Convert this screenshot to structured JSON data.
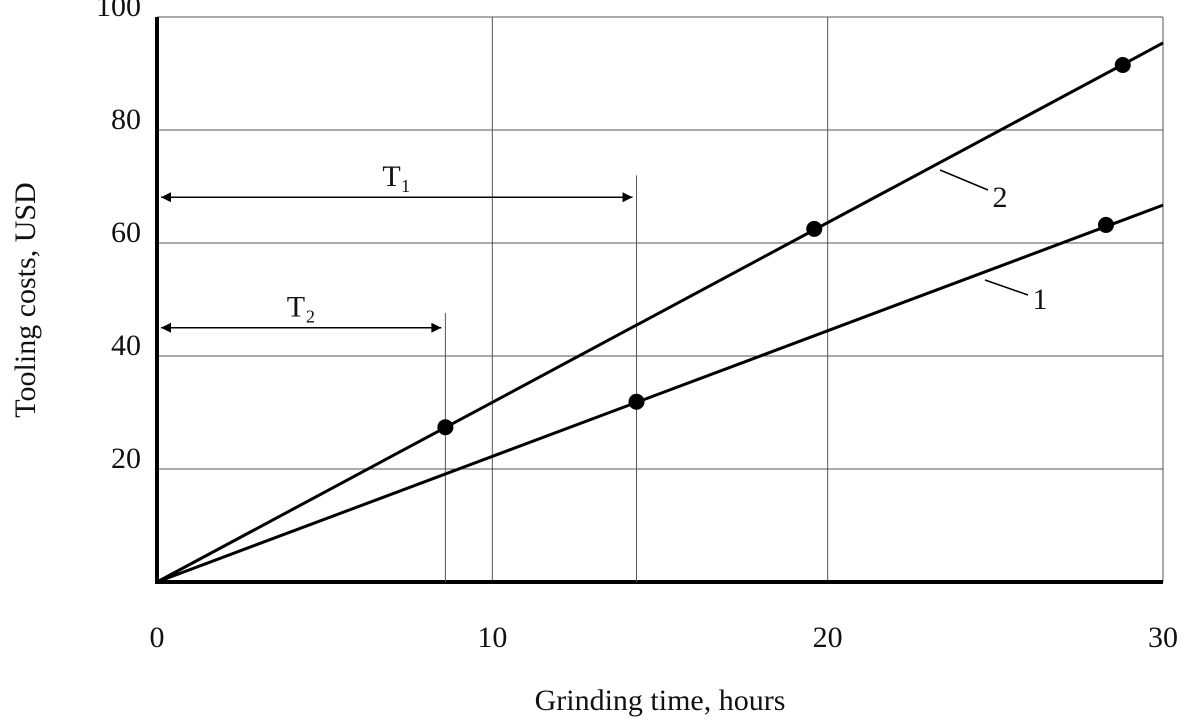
{
  "chart_data": {
    "type": "line",
    "xlabel": "Grinding time, hours",
    "ylabel": "Tooling costs, USD",
    "xlim": [
      0,
      30
    ],
    "ylim": [
      0,
      100
    ],
    "xticks": [
      0,
      10,
      20,
      30
    ],
    "yticks": [
      20,
      40,
      60,
      80,
      100
    ],
    "grid": true,
    "series": [
      {
        "name": "1",
        "color": "#000000",
        "x": [
          0,
          30
        ],
        "values": [
          0,
          66.7
        ],
        "points": {
          "x": [
            14.3,
            28.3
          ],
          "values": [
            31.9,
            63.2
          ]
        }
      },
      {
        "name": "2",
        "color": "#000000",
        "x": [
          0,
          30
        ],
        "values": [
          0,
          95.4
        ],
        "points": {
          "x": [
            8.6,
            19.6,
            28.8
          ],
          "values": [
            27.4,
            62.5,
            91.5
          ]
        }
      }
    ],
    "annotations": [
      {
        "label": "T₁",
        "x": 14.3,
        "y": 68.1,
        "top": 72
      },
      {
        "label": "T₂",
        "x": 8.6,
        "y": 45,
        "top": 47.6
      }
    ]
  }
}
